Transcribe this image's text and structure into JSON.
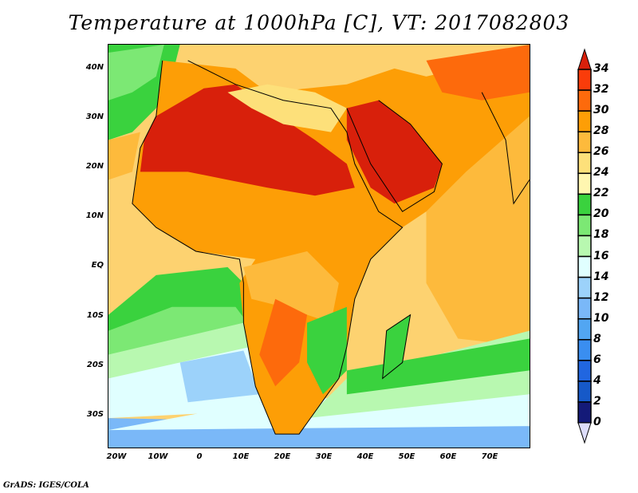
{
  "title": "Temperature at 1000hPa [C], VT: 2017082803",
  "credit": "GrADS: IGES/COLA",
  "lat_labels": [
    "40N",
    "30N",
    "20N",
    "10N",
    "EQ",
    "10S",
    "20S",
    "30S"
  ],
  "lon_labels": [
    "20W",
    "10W",
    "0",
    "10E",
    "20E",
    "30E",
    "40E",
    "50E",
    "60E",
    "70E"
  ],
  "colorbar": {
    "labels": [
      "34",
      "32",
      "30",
      "28",
      "26",
      "24",
      "22",
      "20",
      "18",
      "16",
      "14",
      "12",
      "10",
      "8",
      "6",
      "4",
      "2",
      "0"
    ],
    "colors": [
      "#d8200b",
      "#fa3c0a",
      "#fd6a0c",
      "#fd9e06",
      "#fdba3c",
      "#fde07a",
      "#fff6b0",
      "#3ad23e",
      "#7ce874",
      "#b8f8b0",
      "#e0ffff",
      "#9cd2fa",
      "#7ab8f8",
      "#52a6f2",
      "#3a8ef0",
      "#2166e0",
      "#1659c8",
      "#141a78",
      "#ddddfa"
    ]
  },
  "chart_data": {
    "type": "heatmap",
    "title": "Temperature at 1000hPa [C], VT: 2017082803",
    "variable": "Temperature at 1000hPa",
    "units": "C",
    "xlim": [
      "22W",
      "80E"
    ],
    "ylim": [
      "37S",
      "45N"
    ],
    "levels": [
      0,
      2,
      4,
      6,
      8,
      10,
      12,
      14,
      16,
      18,
      20,
      22,
      24,
      26,
      28,
      30,
      32,
      34
    ]
  }
}
